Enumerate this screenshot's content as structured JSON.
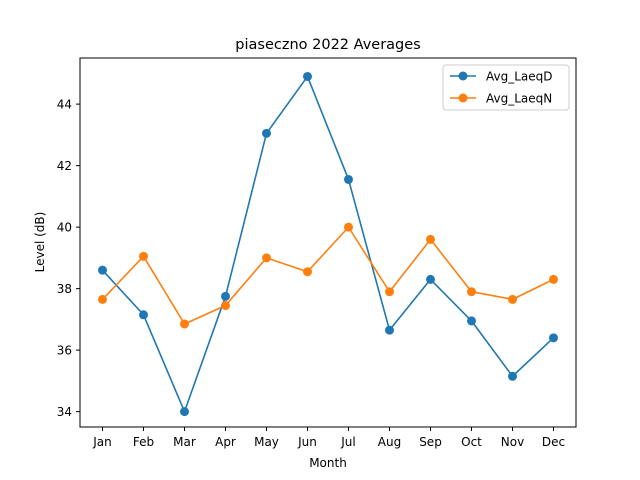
{
  "chart_data": {
    "type": "line",
    "title": "piaseczno 2022 Averages",
    "xlabel": "Month",
    "ylabel": "Level (dB)",
    "categories": [
      "Jan",
      "Feb",
      "Mar",
      "Apr",
      "May",
      "Jun",
      "Jul",
      "Aug",
      "Sep",
      "Oct",
      "Nov",
      "Dec"
    ],
    "ylim": [
      33.5,
      45.5
    ],
    "yticks": [
      34,
      36,
      38,
      40,
      42,
      44
    ],
    "legend_position": "top-right",
    "grid": false,
    "series": [
      {
        "name": "Avg_LaeqD",
        "color": "#1f77b4",
        "values": [
          38.6,
          37.15,
          34.0,
          37.75,
          43.05,
          44.9,
          41.55,
          36.65,
          38.3,
          36.95,
          35.15,
          36.4
        ]
      },
      {
        "name": "Avg_LaeqN",
        "color": "#ff7f0e",
        "values": [
          37.65,
          39.05,
          36.85,
          37.45,
          39.0,
          38.55,
          40.0,
          37.9,
          39.6,
          37.9,
          37.65,
          38.3
        ]
      }
    ]
  }
}
